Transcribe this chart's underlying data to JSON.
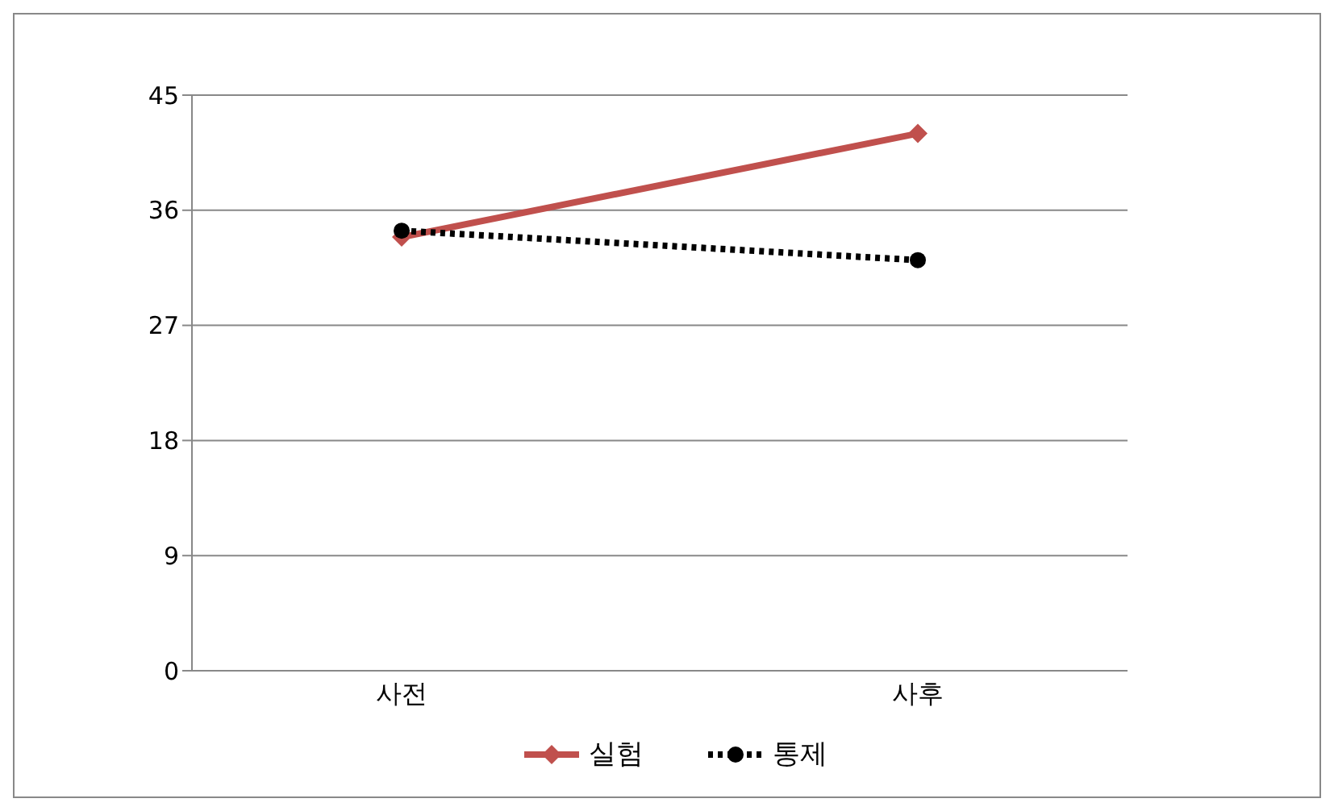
{
  "chart_data": {
    "type": "line",
    "categories": [
      "사전",
      "사후"
    ],
    "series": [
      {
        "name": "실험",
        "color": "#c0504d",
        "values": [
          33.9,
          42.0
        ],
        "marker": "diamond",
        "line_style": "solid"
      },
      {
        "name": "통제",
        "color": "#000000",
        "values": [
          34.4,
          32.1
        ],
        "marker": "circle",
        "line_style": "dotted"
      }
    ],
    "ylim": [
      0,
      45
    ],
    "yticks": [
      0,
      9,
      18,
      27,
      36,
      45
    ],
    "grid": "y",
    "legend": "bottom"
  }
}
